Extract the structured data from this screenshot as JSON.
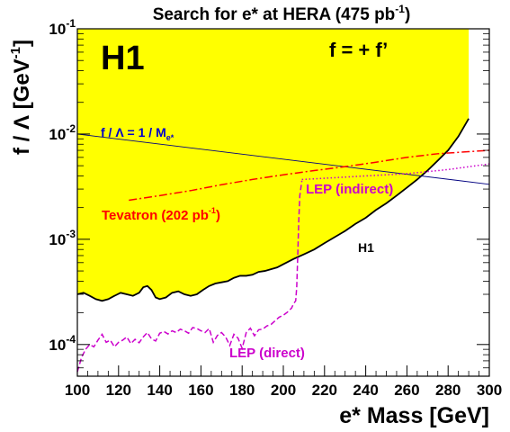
{
  "chart_data": {
    "type": "line",
    "title_main": "Search for e* at HERA (475 pb",
    "title_sup": "-1",
    "title_end": ")",
    "xlabel": "e* Mass [GeV]",
    "ylabel_main": "f / Λ [GeV",
    "ylabel_sup": "-1",
    "ylabel_end": "]",
    "xlim": [
      100,
      300
    ],
    "ylim": [
      5e-05,
      0.1
    ],
    "yscale": "log",
    "x_ticks": [
      100,
      120,
      140,
      160,
      180,
      200,
      220,
      240,
      260,
      280,
      300
    ],
    "y_ticks": [
      {
        "value": 0.0001,
        "base": "10",
        "exp": "-4"
      },
      {
        "value": 0.001,
        "base": "10",
        "exp": "-3"
      },
      {
        "value": 0.01,
        "base": "10",
        "exp": "-2"
      },
      {
        "value": 0.1,
        "base": "10",
        "exp": "-1"
      }
    ],
    "experiment_label": "H1",
    "coupling_label": "f = + f’",
    "series": [
      {
        "name": "H1",
        "style": "solid-fill",
        "color": "#000000",
        "fill": "#ffff00",
        "x": [
          100,
          103,
          106,
          109,
          112,
          115,
          118,
          121,
          124,
          127,
          130,
          132,
          134,
          136,
          138,
          140,
          143,
          146,
          149,
          152,
          155,
          158,
          161,
          164,
          167,
          170,
          173,
          176,
          179,
          182,
          185,
          188,
          191,
          194,
          197,
          200,
          205,
          210,
          215,
          220,
          225,
          230,
          235,
          240,
          245,
          250,
          255,
          260,
          265,
          270,
          275,
          280,
          285,
          290
        ],
        "y": [
          0.0003,
          0.00031,
          0.00029,
          0.00027,
          0.00026,
          0.00027,
          0.00029,
          0.00031,
          0.0003,
          0.00029,
          0.00031,
          0.00035,
          0.00036,
          0.00033,
          0.00028,
          0.00027,
          0.00028,
          0.00031,
          0.00032,
          0.0003,
          0.00029,
          0.0003,
          0.00033,
          0.00036,
          0.00038,
          0.00039,
          0.0004,
          0.00043,
          0.00045,
          0.00045,
          0.00046,
          0.00049,
          0.0005,
          0.00052,
          0.00054,
          0.00058,
          0.00065,
          0.00072,
          0.0008,
          0.00092,
          0.00105,
          0.0012,
          0.0014,
          0.0016,
          0.0019,
          0.0022,
          0.0026,
          0.0031,
          0.0037,
          0.0045,
          0.0056,
          0.007,
          0.0095,
          0.014
        ]
      },
      {
        "name": "f / Λ = 1 / M",
        "name_sub": "e*",
        "style": "solid",
        "color": "#000080",
        "x": [
          100,
          300
        ],
        "y": [
          0.01,
          0.00333
        ]
      },
      {
        "name": "Tevatron (202 pb",
        "name_sup": "-1",
        "name_end": ")",
        "style": "dashdot",
        "color": "#ff0000",
        "x": [
          125,
          140,
          155,
          170,
          185,
          200,
          215,
          230,
          245,
          260,
          275,
          290,
          300
        ],
        "y": [
          0.00235,
          0.0026,
          0.0029,
          0.0033,
          0.0037,
          0.0041,
          0.0045,
          0.0049,
          0.0054,
          0.006,
          0.0065,
          0.0068,
          0.007
        ]
      },
      {
        "name": "LEP (indirect)",
        "style": "dotted",
        "color": "#cc00cc",
        "x": [
          209,
          220,
          240,
          260,
          280,
          300
        ],
        "y": [
          0.0037,
          0.0038,
          0.004,
          0.0042,
          0.0046,
          0.0052
        ]
      },
      {
        "name": "LEP (direct)",
        "style": "dashed",
        "color": "#cc00cc",
        "x": [
          100,
          102,
          104,
          106,
          108,
          110,
          112,
          114,
          116,
          118,
          120,
          122,
          124,
          126,
          128,
          130,
          132,
          134,
          136,
          138,
          140,
          142,
          144,
          146,
          148,
          150,
          152,
          154,
          156,
          158,
          160,
          162,
          164,
          166,
          168,
          170,
          172,
          174,
          176,
          178,
          180,
          182,
          184,
          186,
          188,
          190,
          192,
          194,
          196,
          198,
          200,
          202,
          204,
          205,
          206,
          206.5,
          207,
          207.5,
          208,
          209
        ],
        "y": [
          5.5e-05,
          7.5e-05,
          9e-05,
          0.0001,
          9.5e-05,
          0.00011,
          0.000125,
          0.000105,
          0.00011,
          9.5e-05,
          0.000105,
          0.00011,
          0.000118,
          0.000102,
          0.000112,
          0.000104,
          0.000118,
          0.00013,
          0.000113,
          0.000108,
          0.000128,
          0.000133,
          0.000126,
          0.000135,
          0.00013,
          0.00014,
          0.000135,
          0.000128,
          0.000145,
          0.000142,
          0.000135,
          0.00013,
          0.000142,
          0.000105,
          0.000122,
          0.00013,
          0.000118,
          9.8e-05,
          0.000125,
          0.000115,
          9.2e-05,
          0.00013,
          0.000143,
          0.000121,
          0.000138,
          0.00014,
          0.00015,
          0.000155,
          0.000168,
          0.000182,
          0.00019,
          0.000203,
          0.000222,
          0.000245,
          0.00026,
          0.00035,
          0.0007,
          0.0015,
          0.0026,
          0.0036
        ]
      }
    ]
  }
}
